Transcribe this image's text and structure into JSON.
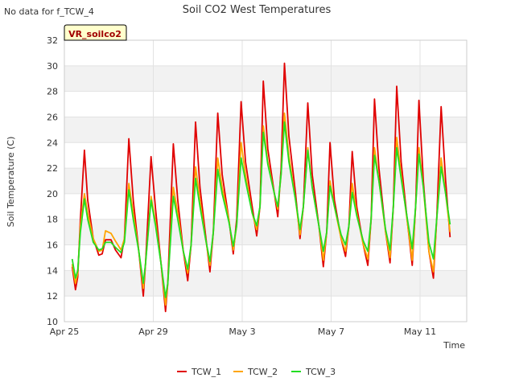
{
  "chart_data": {
    "type": "line",
    "title": "Soil CO2 West Temperatures",
    "no_data_note": "No data for f_TCW_4",
    "station_label": "VR_soilco2",
    "xlabel": "Time",
    "ylabel": "Soil Temperature (C)",
    "ylim": [
      10,
      32
    ],
    "xlim": [
      0,
      18.1
    ],
    "yticks": [
      10,
      12,
      14,
      16,
      18,
      20,
      22,
      24,
      26,
      28,
      30,
      32
    ],
    "xticks": [
      {
        "x": 0,
        "label": "Apr 25"
      },
      {
        "x": 4,
        "label": "Apr 29"
      },
      {
        "x": 8,
        "label": "May 3"
      },
      {
        "x": 12,
        "label": "May 7"
      },
      {
        "x": 16,
        "label": "May 11"
      }
    ],
    "grid": true,
    "banded_background": true,
    "legend_position": "bottom",
    "series": [
      {
        "name": "TCW_1",
        "color": "#e00000",
        "points": [
          [
            0.35,
            14.3
          ],
          [
            0.5,
            12.5
          ],
          [
            0.6,
            13.5
          ],
          [
            0.72,
            18
          ],
          [
            0.9,
            23.4
          ],
          [
            1.05,
            19.5
          ],
          [
            1.3,
            16.5
          ],
          [
            1.55,
            15.2
          ],
          [
            1.7,
            15.3
          ],
          [
            1.85,
            16.4
          ],
          [
            2.1,
            16.4
          ],
          [
            2.3,
            15.6
          ],
          [
            2.55,
            15.0
          ],
          [
            2.7,
            16.5
          ],
          [
            2.9,
            24.3
          ],
          [
            3.1,
            19.5
          ],
          [
            3.35,
            15.5
          ],
          [
            3.55,
            12.0
          ],
          [
            3.65,
            14.5
          ],
          [
            3.9,
            22.9
          ],
          [
            4.1,
            18.8
          ],
          [
            4.35,
            14.5
          ],
          [
            4.55,
            10.8
          ],
          [
            4.65,
            13
          ],
          [
            4.9,
            23.9
          ],
          [
            5.1,
            19.5
          ],
          [
            5.35,
            15.5
          ],
          [
            5.55,
            13.2
          ],
          [
            5.7,
            16
          ],
          [
            5.9,
            25.6
          ],
          [
            6.1,
            20.5
          ],
          [
            6.35,
            16.8
          ],
          [
            6.55,
            13.9
          ],
          [
            6.7,
            17
          ],
          [
            6.9,
            26.3
          ],
          [
            7.1,
            21.5
          ],
          [
            7.4,
            18
          ],
          [
            7.6,
            15.3
          ],
          [
            7.75,
            18
          ],
          [
            7.95,
            27.2
          ],
          [
            8.15,
            22.5
          ],
          [
            8.45,
            19
          ],
          [
            8.65,
            16.7
          ],
          [
            8.8,
            19
          ],
          [
            8.95,
            28.8
          ],
          [
            9.15,
            23.5
          ],
          [
            9.45,
            20
          ],
          [
            9.6,
            18.2
          ],
          [
            9.75,
            22
          ],
          [
            9.9,
            30.2
          ],
          [
            10.1,
            24.5
          ],
          [
            10.4,
            20
          ],
          [
            10.6,
            16.5
          ],
          [
            10.75,
            19
          ],
          [
            10.95,
            27.1
          ],
          [
            11.15,
            21.5
          ],
          [
            11.45,
            17.5
          ],
          [
            11.65,
            14.3
          ],
          [
            11.8,
            17
          ],
          [
            11.95,
            24.0
          ],
          [
            12.15,
            19.5
          ],
          [
            12.45,
            16.5
          ],
          [
            12.65,
            15.1
          ],
          [
            12.8,
            17.5
          ],
          [
            12.95,
            23.3
          ],
          [
            13.15,
            19
          ],
          [
            13.45,
            16
          ],
          [
            13.65,
            14.4
          ],
          [
            13.8,
            18
          ],
          [
            13.95,
            27.4
          ],
          [
            14.15,
            22
          ],
          [
            14.45,
            17
          ],
          [
            14.65,
            14.6
          ],
          [
            14.8,
            19
          ],
          [
            14.95,
            28.4
          ],
          [
            15.15,
            22.5
          ],
          [
            15.45,
            17.5
          ],
          [
            15.65,
            14.4
          ],
          [
            15.8,
            19
          ],
          [
            15.95,
            27.3
          ],
          [
            16.15,
            21
          ],
          [
            16.4,
            15.5
          ],
          [
            16.6,
            13.4
          ],
          [
            16.75,
            18
          ],
          [
            16.95,
            26.8
          ],
          [
            17.15,
            21
          ],
          [
            17.35,
            16.6
          ]
        ]
      },
      {
        "name": "TCW_2",
        "color": "#ffa500",
        "points": [
          [
            0.35,
            14.5
          ],
          [
            0.5,
            13.0
          ],
          [
            0.6,
            13.8
          ],
          [
            0.72,
            17.5
          ],
          [
            0.9,
            20.0
          ],
          [
            1.05,
            18.5
          ],
          [
            1.3,
            16.5
          ],
          [
            1.55,
            15.5
          ],
          [
            1.7,
            15.6
          ],
          [
            1.85,
            17.1
          ],
          [
            2.1,
            16.9
          ],
          [
            2.3,
            16.3
          ],
          [
            2.55,
            15.6
          ],
          [
            2.7,
            16.5
          ],
          [
            2.9,
            20.8
          ],
          [
            3.1,
            18.5
          ],
          [
            3.35,
            15.5
          ],
          [
            3.55,
            12.6
          ],
          [
            3.65,
            14.5
          ],
          [
            3.9,
            19.8
          ],
          [
            4.1,
            17.8
          ],
          [
            4.35,
            14.5
          ],
          [
            4.55,
            11.3
          ],
          [
            4.65,
            13
          ],
          [
            4.9,
            20.5
          ],
          [
            5.1,
            18.5
          ],
          [
            5.35,
            15.5
          ],
          [
            5.55,
            13.8
          ],
          [
            5.7,
            16
          ],
          [
            5.9,
            22.1
          ],
          [
            6.1,
            19.5
          ],
          [
            6.35,
            16.5
          ],
          [
            6.55,
            14.4
          ],
          [
            6.7,
            17
          ],
          [
            6.9,
            22.8
          ],
          [
            7.1,
            20.5
          ],
          [
            7.4,
            18
          ],
          [
            7.6,
            15.6
          ],
          [
            7.75,
            17.5
          ],
          [
            7.95,
            24.0
          ],
          [
            8.15,
            21.5
          ],
          [
            8.45,
            18.5
          ],
          [
            8.65,
            17.2
          ],
          [
            8.8,
            19
          ],
          [
            8.95,
            25.3
          ],
          [
            9.15,
            22.5
          ],
          [
            9.45,
            20
          ],
          [
            9.6,
            18.8
          ],
          [
            9.75,
            21.5
          ],
          [
            9.9,
            26.3
          ],
          [
            10.1,
            23
          ],
          [
            10.4,
            19.5
          ],
          [
            10.6,
            16.8
          ],
          [
            10.75,
            19
          ],
          [
            10.95,
            23.6
          ],
          [
            11.15,
            20.5
          ],
          [
            11.45,
            17.5
          ],
          [
            11.65,
            14.8
          ],
          [
            11.8,
            17
          ],
          [
            11.95,
            21.0
          ],
          [
            12.15,
            19
          ],
          [
            12.45,
            16.5
          ],
          [
            12.65,
            15.5
          ],
          [
            12.8,
            17.5
          ],
          [
            12.95,
            20.8
          ],
          [
            13.15,
            18.5
          ],
          [
            13.45,
            16
          ],
          [
            13.65,
            14.9
          ],
          [
            13.8,
            18
          ],
          [
            13.95,
            23.6
          ],
          [
            14.15,
            21
          ],
          [
            14.45,
            17
          ],
          [
            14.65,
            15.0
          ],
          [
            14.8,
            19
          ],
          [
            14.95,
            24.4
          ],
          [
            15.15,
            21.5
          ],
          [
            15.45,
            17.5
          ],
          [
            15.65,
            14.8
          ],
          [
            15.8,
            19
          ],
          [
            15.95,
            23.6
          ],
          [
            16.15,
            20.5
          ],
          [
            16.4,
            15.5
          ],
          [
            16.6,
            13.9
          ],
          [
            16.75,
            18
          ],
          [
            16.95,
            22.8
          ],
          [
            17.15,
            20
          ],
          [
            17.35,
            17.0
          ]
        ]
      },
      {
        "name": "TCW_3",
        "color": "#22dd22",
        "points": [
          [
            0.35,
            14.9
          ],
          [
            0.5,
            13.4
          ],
          [
            0.6,
            14.0
          ],
          [
            0.72,
            17.0
          ],
          [
            0.9,
            19.6
          ],
          [
            1.05,
            18.0
          ],
          [
            1.3,
            16.2
          ],
          [
            1.55,
            15.6
          ],
          [
            1.7,
            15.7
          ],
          [
            1.85,
            16.2
          ],
          [
            2.1,
            16.2
          ],
          [
            2.3,
            15.8
          ],
          [
            2.55,
            15.4
          ],
          [
            2.7,
            16.2
          ],
          [
            2.9,
            20.3
          ],
          [
            3.1,
            18.0
          ],
          [
            3.35,
            15.5
          ],
          [
            3.55,
            13.0
          ],
          [
            3.65,
            14.5
          ],
          [
            3.9,
            19.5
          ],
          [
            4.1,
            17.5
          ],
          [
            4.35,
            14.5
          ],
          [
            4.55,
            11.9
          ],
          [
            4.65,
            13
          ],
          [
            4.9,
            19.8
          ],
          [
            5.1,
            18.0
          ],
          [
            5.35,
            15.5
          ],
          [
            5.55,
            14.1
          ],
          [
            5.7,
            16
          ],
          [
            5.9,
            21.2
          ],
          [
            6.1,
            19
          ],
          [
            6.35,
            16.5
          ],
          [
            6.55,
            14.7
          ],
          [
            6.7,
            17
          ],
          [
            6.9,
            21.9
          ],
          [
            7.1,
            20
          ],
          [
            7.4,
            17.8
          ],
          [
            7.6,
            15.9
          ],
          [
            7.75,
            17.5
          ],
          [
            7.95,
            22.8
          ],
          [
            8.15,
            21
          ],
          [
            8.45,
            18.5
          ],
          [
            8.65,
            17.5
          ],
          [
            8.8,
            19
          ],
          [
            8.95,
            24.8
          ],
          [
            9.15,
            22.3
          ],
          [
            9.45,
            20
          ],
          [
            9.6,
            19.0
          ],
          [
            9.75,
            21.5
          ],
          [
            9.9,
            25.6
          ],
          [
            10.1,
            22.5
          ],
          [
            10.4,
            19.5
          ],
          [
            10.6,
            17.2
          ],
          [
            10.75,
            19
          ],
          [
            10.95,
            23.4
          ],
          [
            11.15,
            20.5
          ],
          [
            11.45,
            17.5
          ],
          [
            11.65,
            15.5
          ],
          [
            11.8,
            17
          ],
          [
            11.95,
            20.6
          ],
          [
            12.15,
            19
          ],
          [
            12.45,
            16.8
          ],
          [
            12.65,
            16.0
          ],
          [
            12.8,
            17.5
          ],
          [
            12.95,
            20.1
          ],
          [
            13.15,
            18.3
          ],
          [
            13.45,
            16.3
          ],
          [
            13.65,
            15.5
          ],
          [
            13.8,
            18
          ],
          [
            13.95,
            23.0
          ],
          [
            14.15,
            21
          ],
          [
            14.45,
            17.2
          ],
          [
            14.65,
            15.6
          ],
          [
            14.8,
            19
          ],
          [
            14.95,
            23.6
          ],
          [
            15.15,
            21.2
          ],
          [
            15.45,
            17.8
          ],
          [
            15.65,
            15.7
          ],
          [
            15.8,
            19
          ],
          [
            15.95,
            23.1
          ],
          [
            16.15,
            20.5
          ],
          [
            16.4,
            16.2
          ],
          [
            16.6,
            14.9
          ],
          [
            16.75,
            18
          ],
          [
            16.95,
            22.1
          ],
          [
            17.15,
            20
          ],
          [
            17.35,
            17.6
          ]
        ]
      }
    ]
  }
}
